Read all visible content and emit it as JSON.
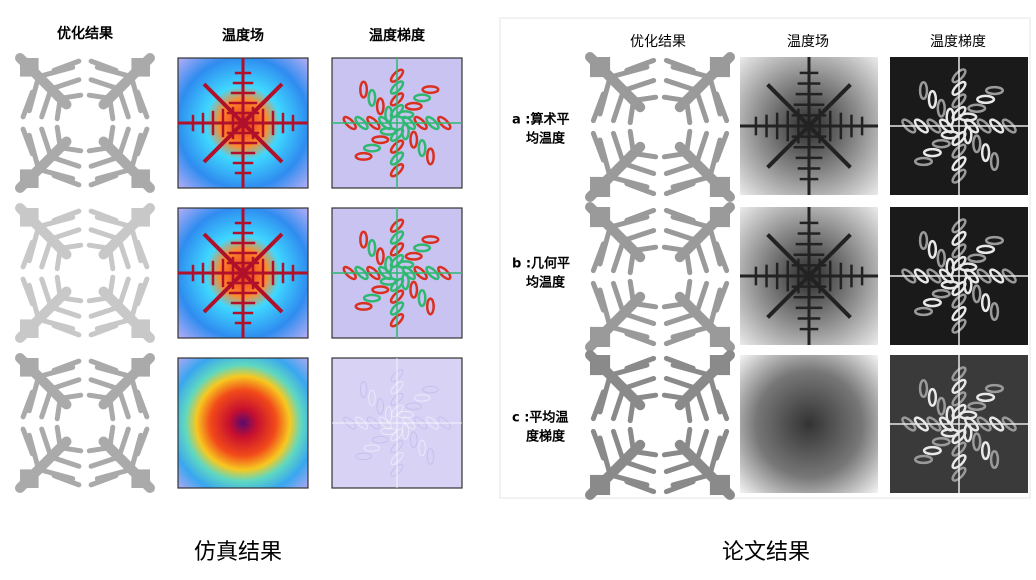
{
  "left_panel": {
    "column_titles": [
      "优化结果",
      "温度场",
      "温度梯度"
    ],
    "caption": "仿真结果"
  },
  "right_panel": {
    "column_titles": [
      "优化结果",
      "温度场",
      "温度梯度"
    ],
    "row_labels": [
      [
        "a :算术平",
        "均温度"
      ],
      [
        "b :几何平",
        "均温度"
      ],
      [
        "c :平均温",
        "度梯度"
      ]
    ],
    "caption": "论文结果"
  }
}
